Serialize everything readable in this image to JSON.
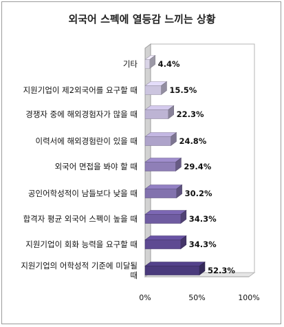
{
  "chart_data": {
    "type": "bar",
    "orientation": "horizontal",
    "title": "외국어 스펙에 열등감 느끼는 상황",
    "categories": [
      "기타",
      "지원기업이 제2외국어를 요구할 때",
      "경쟁자 중에 해외경험자가 많을 때",
      "이력서에 해외경험란이 있을 때",
      "외국어 면접을 봐야 할 때",
      "공인어학성적이 남들보다 낮을 때",
      "합격자 평균 외국어 스펙이 높을 때",
      "지원기업이 회화 능력을 요구할 때",
      "지원기업의 어학성적 기준에 미달될 때"
    ],
    "category_lines": [
      [
        "기타"
      ],
      [
        "지원기업이 제2외국어를 요구할 때"
      ],
      [
        "경쟁자 중에 해외경험자가 많을 때"
      ],
      [
        "이력서에 해외경험란이 있을 때"
      ],
      [
        "외국어 면접을 봐야 할 때"
      ],
      [
        "공인어학성적이 남들보다 낮을 때"
      ],
      [
        "합격자 평균 외국어 스펙이 높을 때"
      ],
      [
        "지원기업이 회화 능력을 요구할 때"
      ],
      [
        "지원기업의 어학성적 기준에 미달될",
        "때"
      ]
    ],
    "values": [
      4.4,
      15.5,
      22.3,
      24.8,
      29.4,
      30.2,
      34.3,
      34.3,
      52.3
    ],
    "value_labels": [
      "4.4%",
      "15.5%",
      "22.3%",
      "24.8%",
      "29.4%",
      "30.2%",
      "34.3%",
      "34.3%",
      "52.3%"
    ],
    "xticks": [
      "0%",
      "50%",
      "100%"
    ],
    "xlim": [
      0,
      100
    ],
    "bar_colors": [
      "#d9d4e6",
      "#ccc5df",
      "#bdb4d4",
      "#aea3ca",
      "#8f7fb7",
      "#8272ae",
      "#6f5ca1",
      "#5e4a92",
      "#4a3a7c"
    ],
    "grid": false
  }
}
